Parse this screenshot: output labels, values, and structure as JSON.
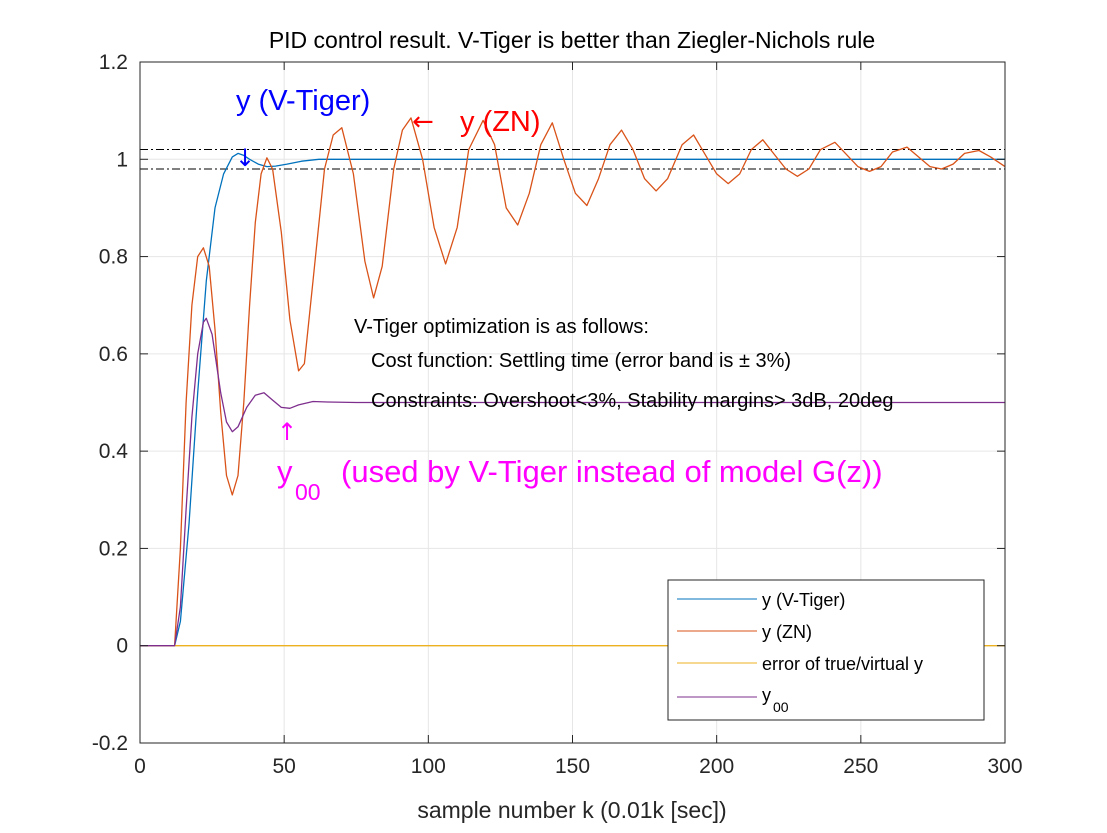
{
  "chart_data": {
    "type": "line",
    "title": "PID control result. V-Tiger is better than Ziegler-Nichols rule",
    "xlabel": "sample number k (0.01k [sec])",
    "ylabel": "",
    "xlim": [
      0,
      300
    ],
    "ylim": [
      -0.2,
      1.2
    ],
    "grid": true,
    "xticks": [
      0,
      50,
      100,
      150,
      200,
      250,
      300
    ],
    "xtick_labels": [
      "0",
      "50",
      "100",
      "150",
      "200",
      "250",
      "300"
    ],
    "yticks": [
      -0.2,
      0,
      0.2,
      0.4,
      0.6,
      0.8,
      1,
      1.2
    ],
    "ytick_labels": [
      "-0.2",
      "0",
      "0.2",
      "0.4",
      "0.6",
      "0.8",
      "1",
      "1.2"
    ],
    "reference_lines": [
      1.02,
      0.98
    ],
    "legend_position": "bottom-right",
    "series": [
      {
        "name": "y (V-Tiger)",
        "color": "#0072BD",
        "points": [
          [
            0,
            0
          ],
          [
            12,
            0
          ],
          [
            14,
            0.05
          ],
          [
            17,
            0.25
          ],
          [
            20,
            0.52
          ],
          [
            23,
            0.75
          ],
          [
            26,
            0.9
          ],
          [
            29,
            0.97
          ],
          [
            32,
            1.005
          ],
          [
            34,
            1.012
          ],
          [
            36,
            1.008
          ],
          [
            38,
            1.0
          ],
          [
            41,
            0.99
          ],
          [
            44,
            0.985
          ],
          [
            47,
            0.986
          ],
          [
            51,
            0.99
          ],
          [
            56,
            0.996
          ],
          [
            62,
            1.0
          ],
          [
            80,
            1.0
          ],
          [
            300,
            1.0
          ]
        ]
      },
      {
        "name": "y (ZN)",
        "color": "#D95319",
        "points": [
          [
            0,
            0
          ],
          [
            12,
            0
          ],
          [
            14,
            0.2
          ],
          [
            16,
            0.5
          ],
          [
            18,
            0.7
          ],
          [
            20,
            0.8
          ],
          [
            22,
            0.818
          ],
          [
            24,
            0.78
          ],
          [
            26,
            0.65
          ],
          [
            28,
            0.48
          ],
          [
            30,
            0.35
          ],
          [
            32,
            0.31
          ],
          [
            34,
            0.35
          ],
          [
            36,
            0.5
          ],
          [
            38,
            0.7
          ],
          [
            40,
            0.87
          ],
          [
            42,
            0.97
          ],
          [
            44,
            1.003
          ],
          [
            46,
            0.98
          ],
          [
            49,
            0.85
          ],
          [
            52,
            0.67
          ],
          [
            55,
            0.565
          ],
          [
            57,
            0.58
          ],
          [
            60,
            0.75
          ],
          [
            64,
            0.98
          ],
          [
            67,
            1.05
          ],
          [
            70,
            1.065
          ],
          [
            74,
            0.97
          ],
          [
            78,
            0.79
          ],
          [
            81,
            0.715
          ],
          [
            84,
            0.78
          ],
          [
            88,
            0.98
          ],
          [
            91,
            1.06
          ],
          [
            94,
            1.085
          ],
          [
            98,
            1.0
          ],
          [
            102,
            0.86
          ],
          [
            106,
            0.785
          ],
          [
            110,
            0.86
          ],
          [
            114,
            1.02
          ],
          [
            119,
            1.08
          ],
          [
            123,
            1.03
          ],
          [
            127,
            0.9
          ],
          [
            131,
            0.865
          ],
          [
            135,
            0.93
          ],
          [
            139,
            1.03
          ],
          [
            143,
            1.075
          ],
          [
            147,
            1.0
          ],
          [
            151,
            0.93
          ],
          [
            155,
            0.905
          ],
          [
            159,
            0.96
          ],
          [
            163,
            1.03
          ],
          [
            167,
            1.06
          ],
          [
            171,
            1.02
          ],
          [
            175,
            0.96
          ],
          [
            179,
            0.935
          ],
          [
            183,
            0.96
          ],
          [
            188,
            1.03
          ],
          [
            192,
            1.05
          ],
          [
            196,
            1.01
          ],
          [
            200,
            0.97
          ],
          [
            204,
            0.95
          ],
          [
            208,
            0.97
          ],
          [
            212,
            1.02
          ],
          [
            216,
            1.04
          ],
          [
            220,
            1.01
          ],
          [
            224,
            0.98
          ],
          [
            228,
            0.965
          ],
          [
            232,
            0.98
          ],
          [
            236,
            1.02
          ],
          [
            241,
            1.035
          ],
          [
            245,
            1.01
          ],
          [
            249,
            0.985
          ],
          [
            253,
            0.975
          ],
          [
            257,
            0.985
          ],
          [
            261,
            1.015
          ],
          [
            266,
            1.025
          ],
          [
            270,
            1.005
          ],
          [
            274,
            0.985
          ],
          [
            278,
            0.98
          ],
          [
            282,
            0.99
          ],
          [
            286,
            1.012
          ],
          [
            291,
            1.018
          ],
          [
            295,
            1.005
          ],
          [
            300,
            0.985
          ]
        ]
      },
      {
        "name": "error of true/virtual y",
        "color": "#EDB120",
        "points": [
          [
            0,
            0
          ],
          [
            300,
            0
          ]
        ]
      },
      {
        "name": "y",
        "name_subscript": "00",
        "color": "#7E2F8E",
        "points": [
          [
            0,
            0
          ],
          [
            12,
            0
          ],
          [
            14,
            0.08
          ],
          [
            16,
            0.28
          ],
          [
            18,
            0.47
          ],
          [
            20,
            0.6
          ],
          [
            22,
            0.665
          ],
          [
            23,
            0.673
          ],
          [
            25,
            0.64
          ],
          [
            28,
            0.52
          ],
          [
            30,
            0.46
          ],
          [
            32,
            0.44
          ],
          [
            34,
            0.45
          ],
          [
            37,
            0.49
          ],
          [
            40,
            0.515
          ],
          [
            43,
            0.52
          ],
          [
            46,
            0.505
          ],
          [
            49,
            0.49
          ],
          [
            52,
            0.488
          ],
          [
            55,
            0.495
          ],
          [
            60,
            0.502
          ],
          [
            65,
            0.501
          ],
          [
            75,
            0.5
          ],
          [
            300,
            0.5
          ]
        ]
      }
    ],
    "annotations": {
      "vtiger_label": "y (V-Tiger)",
      "vtiger_arrow": "↓",
      "zn_arrow": "←",
      "zn_label": "y (ZN)",
      "opt_title": "V-Tiger optimization is as follows:",
      "opt_cost": "Cost function: Settling time (error band is ± 3%)",
      "opt_constraints": "Constraints: Overshoot<3%, Stability margins> 3dB, 20deg",
      "y00_arrow": "↑",
      "y00_base": "y",
      "y00_sub": "00",
      "y00_text": "(used by V-Tiger instead of model G(z))"
    },
    "annotation_colors": {
      "vtiger": "#0000FF",
      "zn": "#FF0000",
      "y00": "#FF00FF"
    }
  }
}
